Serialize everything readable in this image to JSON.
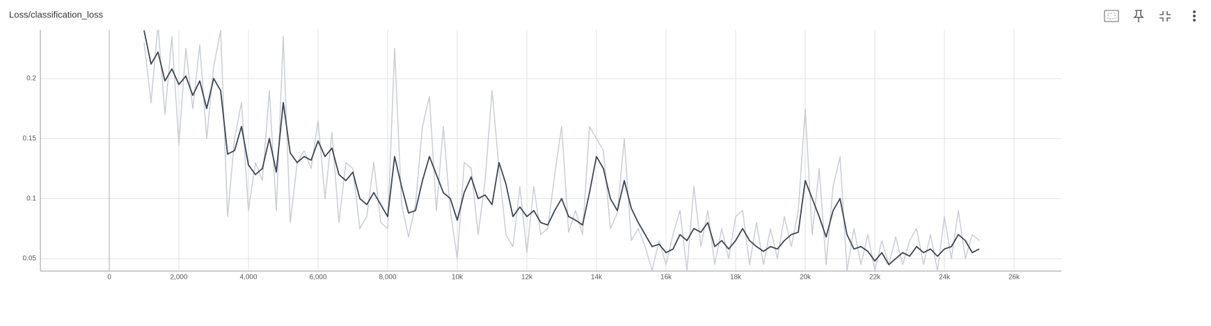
{
  "chart_data": {
    "type": "line",
    "title": "Loss/classification_loss",
    "x": [
      1000,
      1200,
      1400,
      1600,
      1800,
      2000,
      2200,
      2400,
      2600,
      2800,
      3000,
      3200,
      3400,
      3600,
      3800,
      4000,
      4200,
      4400,
      4600,
      4800,
      5000,
      5200,
      5400,
      5600,
      5800,
      6000,
      6200,
      6400,
      6600,
      6800,
      7000,
      7200,
      7400,
      7600,
      7800,
      8000,
      8200,
      8400,
      8600,
      8800,
      9000,
      9200,
      9400,
      9600,
      9800,
      10000,
      10200,
      10400,
      10600,
      10800,
      11000,
      11200,
      11400,
      11600,
      11800,
      12000,
      12200,
      12400,
      12600,
      12800,
      13000,
      13200,
      13400,
      13600,
      13800,
      14000,
      14200,
      14400,
      14600,
      14800,
      15000,
      15200,
      15400,
      15600,
      15800,
      16000,
      16200,
      16400,
      16600,
      16800,
      17000,
      17200,
      17400,
      17600,
      17800,
      18000,
      18200,
      18400,
      18600,
      18800,
      19000,
      19200,
      19400,
      19600,
      19800,
      20000,
      20200,
      20400,
      20600,
      20800,
      21000,
      21200,
      21400,
      21600,
      21800,
      22000,
      22200,
      22400,
      22600,
      22800,
      23000,
      23200,
      23400,
      23600,
      23800,
      24000,
      24200,
      24400,
      24600,
      24800,
      25000
    ],
    "series": [
      {
        "color": "#c9cdd6",
        "values": [
          0.23,
          0.18,
          0.245,
          0.17,
          0.235,
          0.145,
          0.225,
          0.175,
          0.228,
          0.15,
          0.21,
          0.24,
          0.085,
          0.15,
          0.18,
          0.09,
          0.13,
          0.115,
          0.19,
          0.09,
          0.235,
          0.08,
          0.13,
          0.14,
          0.125,
          0.165,
          0.1,
          0.155,
          0.08,
          0.13,
          0.125,
          0.075,
          0.085,
          0.13,
          0.08,
          0.075,
          0.225,
          0.095,
          0.068,
          0.095,
          0.16,
          0.185,
          0.09,
          0.16,
          0.09,
          0.05,
          0.13,
          0.125,
          0.07,
          0.115,
          0.19,
          0.125,
          0.07,
          0.06,
          0.11,
          0.055,
          0.11,
          0.07,
          0.075,
          0.12,
          0.16,
          0.072,
          0.09,
          0.07,
          0.16,
          0.15,
          0.14,
          0.075,
          0.088,
          0.15,
          0.065,
          0.075,
          0.06,
          0.04,
          0.065,
          0.045,
          0.07,
          0.09,
          0.04,
          0.11,
          0.06,
          0.09,
          0.045,
          0.075,
          0.05,
          0.085,
          0.09,
          0.045,
          0.08,
          0.045,
          0.075,
          0.05,
          0.085,
          0.06,
          0.09,
          0.175,
          0.07,
          0.125,
          0.045,
          0.11,
          0.135,
          0.04,
          0.075,
          0.045,
          0.07,
          0.04,
          0.065,
          0.045,
          0.068,
          0.045,
          0.065,
          0.075,
          0.045,
          0.07,
          0.04,
          0.085,
          0.05,
          0.09,
          0.05,
          0.07,
          0.065
        ]
      },
      {
        "color": "#3a4556",
        "values": [
          0.24,
          0.212,
          0.222,
          0.198,
          0.208,
          0.195,
          0.202,
          0.186,
          0.198,
          0.175,
          0.2,
          0.19,
          0.137,
          0.14,
          0.16,
          0.128,
          0.12,
          0.125,
          0.15,
          0.122,
          0.18,
          0.138,
          0.13,
          0.135,
          0.132,
          0.148,
          0.135,
          0.142,
          0.12,
          0.115,
          0.122,
          0.1,
          0.095,
          0.105,
          0.095,
          0.085,
          0.135,
          0.11,
          0.088,
          0.09,
          0.115,
          0.135,
          0.12,
          0.105,
          0.1,
          0.082,
          0.105,
          0.118,
          0.1,
          0.103,
          0.095,
          0.13,
          0.112,
          0.085,
          0.093,
          0.085,
          0.09,
          0.08,
          0.078,
          0.09,
          0.1,
          0.085,
          0.082,
          0.078,
          0.105,
          0.135,
          0.125,
          0.1,
          0.09,
          0.115,
          0.092,
          0.08,
          0.07,
          0.06,
          0.062,
          0.055,
          0.058,
          0.07,
          0.065,
          0.075,
          0.072,
          0.08,
          0.06,
          0.065,
          0.058,
          0.065,
          0.075,
          0.065,
          0.06,
          0.056,
          0.06,
          0.058,
          0.065,
          0.07,
          0.072,
          0.115,
          0.1,
          0.085,
          0.068,
          0.09,
          0.1,
          0.07,
          0.058,
          0.06,
          0.056,
          0.048,
          0.055,
          0.045,
          0.05,
          0.055,
          0.052,
          0.06,
          0.055,
          0.058,
          0.052,
          0.058,
          0.06,
          0.07,
          0.065,
          0.055,
          0.058
        ]
      }
    ],
    "xlim": [
      -1980,
      27360
    ],
    "ylim": [
      0.0396,
      0.2405
    ],
    "xticks": [
      0,
      {
        "value": 2000,
        "label": "2,000"
      },
      {
        "value": 4000,
        "label": "4,000"
      },
      {
        "value": 6000,
        "label": "6,000"
      },
      {
        "value": 8000,
        "label": "8,000"
      },
      {
        "value": 10000,
        "label": "10k"
      },
      {
        "value": 12000,
        "label": "12k"
      },
      {
        "value": 14000,
        "label": "14k"
      },
      {
        "value": 16000,
        "label": "16k"
      },
      {
        "value": 18000,
        "label": "18k"
      },
      {
        "value": 20000,
        "label": "20k"
      },
      {
        "value": 22000,
        "label": "22k"
      },
      {
        "value": 24000,
        "label": "24k"
      },
      {
        "value": 26000,
        "label": "26k"
      }
    ],
    "yticks": [
      0.05,
      0.1,
      0.15,
      0.2
    ],
    "grid": true
  }
}
